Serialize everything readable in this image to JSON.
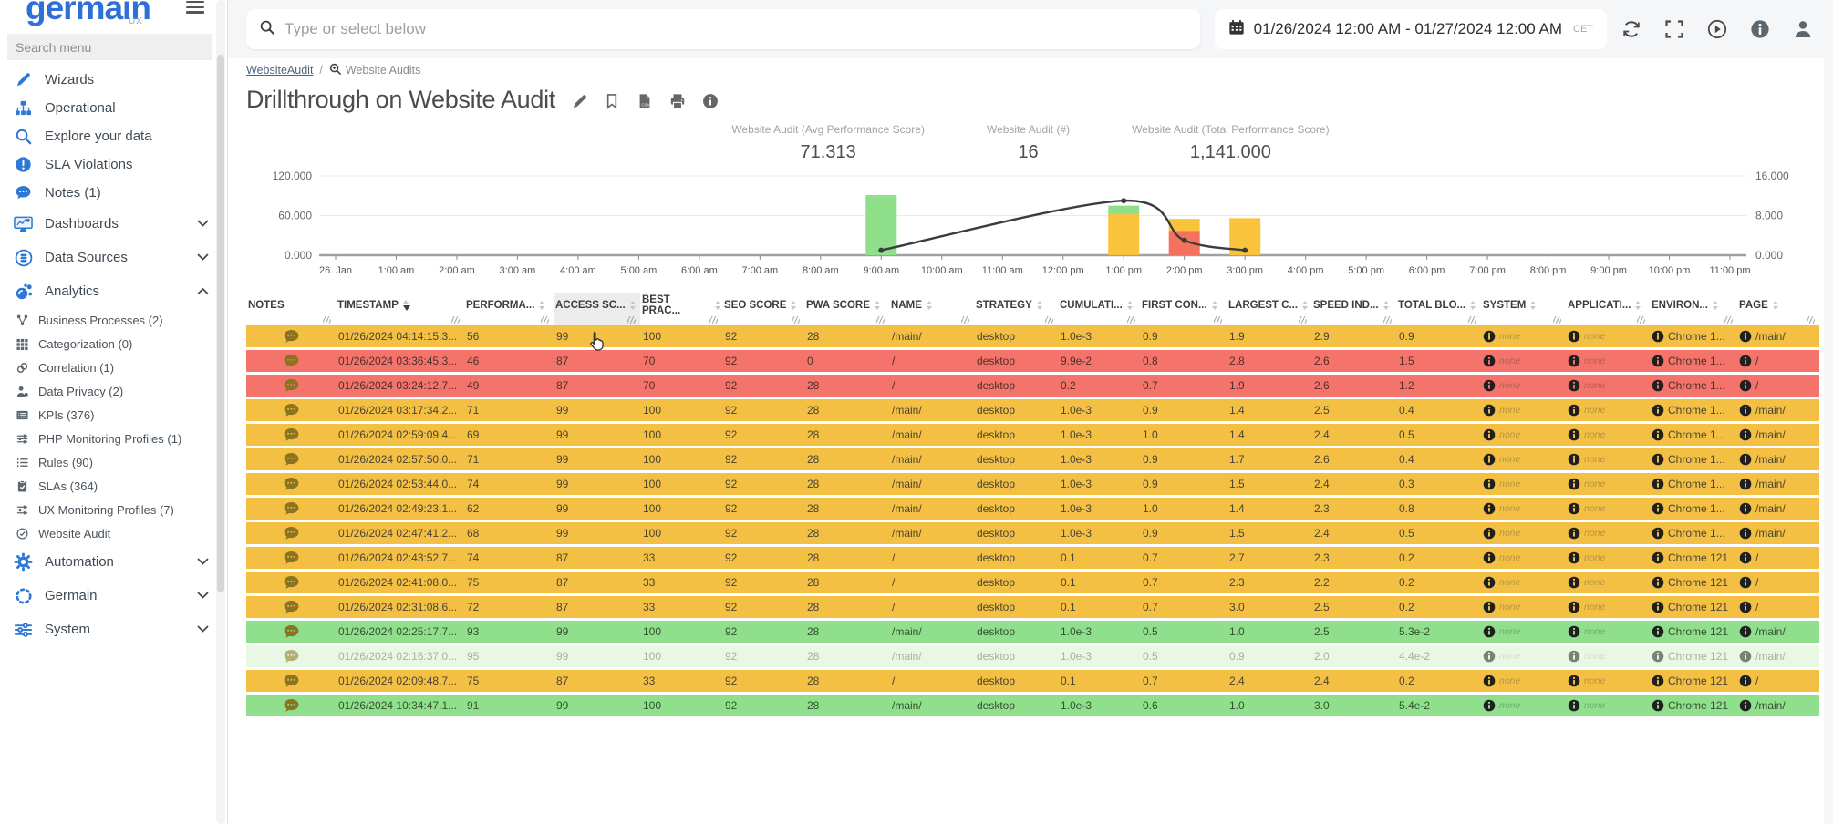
{
  "sidebar": {
    "logo": "germain",
    "logo_sub": "UX",
    "search_placeholder": "Search menu",
    "items": [
      {
        "label": "Wizards"
      },
      {
        "label": "Operational"
      },
      {
        "label": "Explore your data"
      },
      {
        "label": "SLA Violations"
      },
      {
        "label": "Notes (1)"
      },
      {
        "label": "Dashboards",
        "chevron": "down"
      },
      {
        "label": "Data Sources",
        "chevron": "down"
      },
      {
        "label": "Analytics",
        "chevron": "up"
      }
    ],
    "analytics_children": [
      "Business Processes (2)",
      "Categorization (0)",
      "Correlation (1)",
      "Data Privacy (2)",
      "KPIs (376)",
      "PHP Monitoring Profiles (1)",
      "Rules (90)",
      "SLAs (364)",
      "UX Monitoring Profiles (7)",
      "Website Audit"
    ],
    "items_bottom": [
      {
        "label": "Automation",
        "chevron": "down"
      },
      {
        "label": "Germain",
        "chevron": "down"
      },
      {
        "label": "System",
        "chevron": "down"
      }
    ]
  },
  "topbar": {
    "search_placeholder": "Type or select below",
    "date_range": "01/26/2024 12:00 AM - 01/27/2024 12:00 AM",
    "timezone": "CET"
  },
  "breadcrumb": {
    "link": "WebsiteAudit",
    "separator": "/",
    "current": "Website Audits"
  },
  "page": {
    "title": "Drillthrough on Website Audit"
  },
  "kpis": [
    {
      "label": "Website Audit (Avg Performance Score)",
      "value": "71.313"
    },
    {
      "label": "Website Audit (#)",
      "value": "16"
    },
    {
      "label": "Website Audit (Total Performance Score)",
      "value": "1,141.000"
    }
  ],
  "chart_data": {
    "type": "bar",
    "subtype": "stacked-bars-with-line",
    "x_ticks": [
      "26. Jan",
      "1:00 am",
      "2:00 am",
      "3:00 am",
      "4:00 am",
      "5:00 am",
      "6:00 am",
      "7:00 am",
      "8:00 am",
      "9:00 am",
      "10:00 am",
      "11:00 am",
      "12:00 pm",
      "1:00 pm",
      "2:00 pm",
      "3:00 pm",
      "4:00 pm",
      "5:00 pm",
      "6:00 pm",
      "7:00 pm",
      "8:00 pm",
      "9:00 pm",
      "10:00 pm",
      "11:00 pm"
    ],
    "left_axis": {
      "min": 0,
      "max": 120,
      "ticks": [
        120,
        60,
        0
      ],
      "tick_labels": [
        "120.000",
        "60.000",
        "0.000"
      ]
    },
    "right_axis": {
      "min": 0,
      "max": 16,
      "ticks": [
        16,
        8,
        0
      ],
      "tick_labels": [
        "16.000",
        "8.000",
        "0.000"
      ]
    },
    "grid": true,
    "legend": "none",
    "bars": {
      "axis": "left",
      "name": "Website Audit (Avg Performance Score)",
      "stacks": [
        {
          "x": "9:00 am",
          "segments": [
            {
              "status": "green",
              "value": 91
            }
          ]
        },
        {
          "x": "1:00 pm",
          "segments": [
            {
              "status": "yellow",
              "value": 62
            },
            {
              "status": "green",
              "value": 13
            }
          ]
        },
        {
          "x": "2:00 pm",
          "segments": [
            {
              "status": "red",
              "value": 37
            },
            {
              "status": "yellow",
              "value": 18
            }
          ]
        },
        {
          "x": "3:00 pm",
          "segments": [
            {
              "status": "yellow",
              "value": 56
            }
          ]
        }
      ]
    },
    "line": {
      "axis": "right",
      "name": "Website Audit (#)",
      "points": [
        {
          "x": "9:00 am",
          "y": 1
        },
        {
          "x": "1:00 pm",
          "y": 11
        },
        {
          "x": "2:00 pm",
          "y": 3
        },
        {
          "x": "3:00 pm",
          "y": 1
        }
      ]
    },
    "colors": {
      "green": "#8fdf8b",
      "yellow": "#f9c33c",
      "red": "#f4715e",
      "line": "#3c3c3c"
    }
  },
  "table": {
    "columns": [
      {
        "label": "NOTES",
        "sortable": false
      },
      {
        "label": "TIMESTAMP",
        "sorted": "desc"
      },
      {
        "label": "PERFORMA..."
      },
      {
        "label": "ACCESS SC...",
        "highlight": true
      },
      {
        "label": "BEST PRAC..."
      },
      {
        "label": "SEO SCORE"
      },
      {
        "label": "PWA SCORE"
      },
      {
        "label": "NAME"
      },
      {
        "label": "STRATEGY"
      },
      {
        "label": "CUMULATI..."
      },
      {
        "label": "FIRST CON..."
      },
      {
        "label": "LARGEST C..."
      },
      {
        "label": "SPEED IND..."
      },
      {
        "label": "TOTAL BLO..."
      },
      {
        "label": "SYSTEM"
      },
      {
        "label": "APPLICATI..."
      },
      {
        "label": "ENVIRON..."
      },
      {
        "label": "PAGE"
      }
    ],
    "rows": [
      {
        "status": "yellow",
        "values": [
          "01/26/2024 04:14:15.3...",
          "56",
          "99",
          "100",
          "92",
          "28",
          "/main/",
          "desktop",
          "1.0e-3",
          "0.9",
          "1.9",
          "2.9",
          "0.9",
          "none",
          "none",
          "Chrome 1...",
          "/main/"
        ]
      },
      {
        "status": "red",
        "values": [
          "01/26/2024 03:36:45.3...",
          "46",
          "87",
          "70",
          "92",
          "0",
          "/",
          "desktop",
          "9.9e-2",
          "0.8",
          "2.8",
          "2.6",
          "1.5",
          "none",
          "none",
          "Chrome 1...",
          "/"
        ]
      },
      {
        "status": "red",
        "values": [
          "01/26/2024 03:24:12.7...",
          "49",
          "87",
          "70",
          "92",
          "28",
          "/",
          "desktop",
          "0.2",
          "0.7",
          "1.9",
          "2.6",
          "1.2",
          "none",
          "none",
          "Chrome 1...",
          "/"
        ]
      },
      {
        "status": "yellow",
        "values": [
          "01/26/2024 03:17:34.2...",
          "71",
          "99",
          "100",
          "92",
          "28",
          "/main/",
          "desktop",
          "1.0e-3",
          "0.9",
          "1.4",
          "2.5",
          "0.4",
          "none",
          "none",
          "Chrome 1...",
          "/main/"
        ]
      },
      {
        "status": "yellow",
        "values": [
          "01/26/2024 02:59:09.4...",
          "69",
          "99",
          "100",
          "92",
          "28",
          "/main/",
          "desktop",
          "1.0e-3",
          "1.0",
          "1.4",
          "2.4",
          "0.5",
          "none",
          "none",
          "Chrome 1...",
          "/main/"
        ]
      },
      {
        "status": "yellow",
        "values": [
          "01/26/2024 02:57:50.0...",
          "71",
          "99",
          "100",
          "92",
          "28",
          "/main/",
          "desktop",
          "1.0e-3",
          "0.9",
          "1.7",
          "2.6",
          "0.4",
          "none",
          "none",
          "Chrome 1...",
          "/main/"
        ]
      },
      {
        "status": "yellow",
        "values": [
          "01/26/2024 02:53:44.0...",
          "74",
          "99",
          "100",
          "92",
          "28",
          "/main/",
          "desktop",
          "1.0e-3",
          "0.9",
          "1.5",
          "2.4",
          "0.3",
          "none",
          "none",
          "Chrome 1...",
          "/main/"
        ]
      },
      {
        "status": "yellow",
        "values": [
          "01/26/2024 02:49:23.1...",
          "62",
          "99",
          "100",
          "92",
          "28",
          "/main/",
          "desktop",
          "1.0e-3",
          "1.0",
          "1.4",
          "2.3",
          "0.8",
          "none",
          "none",
          "Chrome 1...",
          "/main/"
        ]
      },
      {
        "status": "yellow",
        "values": [
          "01/26/2024 02:47:41.2...",
          "68",
          "99",
          "100",
          "92",
          "28",
          "/main/",
          "desktop",
          "1.0e-3",
          "0.9",
          "1.5",
          "2.4",
          "0.5",
          "none",
          "none",
          "Chrome 1...",
          "/main/"
        ]
      },
      {
        "status": "yellow",
        "values": [
          "01/26/2024 02:43:52.7...",
          "74",
          "87",
          "33",
          "92",
          "28",
          "/",
          "desktop",
          "0.1",
          "0.7",
          "2.7",
          "2.3",
          "0.2",
          "none",
          "none",
          "Chrome 121",
          "/"
        ]
      },
      {
        "status": "yellow",
        "values": [
          "01/26/2024 02:41:08.0...",
          "75",
          "87",
          "33",
          "92",
          "28",
          "/",
          "desktop",
          "0.1",
          "0.7",
          "2.3",
          "2.2",
          "0.2",
          "none",
          "none",
          "Chrome 121",
          "/"
        ]
      },
      {
        "status": "yellow",
        "values": [
          "01/26/2024 02:31:08.6...",
          "72",
          "87",
          "33",
          "92",
          "28",
          "/",
          "desktop",
          "0.1",
          "0.7",
          "3.0",
          "2.5",
          "0.2",
          "none",
          "none",
          "Chrome 121",
          "/"
        ]
      },
      {
        "status": "green",
        "values": [
          "01/26/2024 02:25:17.7...",
          "93",
          "99",
          "100",
          "92",
          "28",
          "/main/",
          "desktop",
          "1.0e-3",
          "0.5",
          "1.0",
          "2.5",
          "5.3e-2",
          "none",
          "none",
          "Chrome 121",
          "/main/"
        ]
      },
      {
        "status": "green-pale",
        "values": [
          "01/26/2024 02:16:37.0...",
          "95",
          "99",
          "100",
          "92",
          "28",
          "/main/",
          "desktop",
          "1.0e-3",
          "0.5",
          "0.9",
          "2.0",
          "4.4e-2",
          "none",
          "none",
          "Chrome 121",
          "/main/"
        ]
      },
      {
        "status": "yellow",
        "values": [
          "01/26/2024 02:09:48.7...",
          "75",
          "87",
          "33",
          "92",
          "28",
          "/",
          "desktop",
          "0.1",
          "0.7",
          "2.4",
          "2.4",
          "0.2",
          "none",
          "none",
          "Chrome 121",
          "/"
        ]
      },
      {
        "status": "green",
        "values": [
          "01/26/2024 10:34:47.1...",
          "91",
          "99",
          "100",
          "92",
          "28",
          "/main/",
          "desktop",
          "1.0e-3",
          "0.6",
          "1.0",
          "3.0",
          "5.4e-2",
          "none",
          "none",
          "Chrome 121",
          "/main/"
        ]
      }
    ]
  }
}
